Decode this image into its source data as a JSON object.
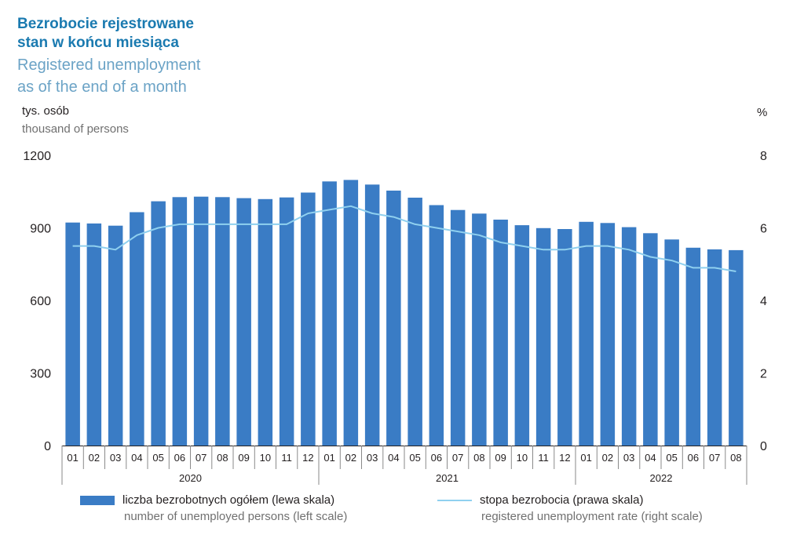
{
  "title": {
    "pl_line1": "Bezrobocie rejestrowane",
    "pl_line2": "stan w końcu miesiąca",
    "en_line1": "Registered unemployment",
    "en_line2": "as of the end of a month"
  },
  "axis_units": {
    "left_pl": "tys. osób",
    "left_en": "thousand of persons",
    "right": "%"
  },
  "legend": {
    "bars_pl": "liczba bezrobotnych ogółem (lewa skala)",
    "bars_en": "number of unemployed persons (left scale)",
    "line_pl": "stopa bezrobocia (prawa skala)",
    "line_en": "registered unemployment rate (right scale)"
  },
  "colors": {
    "bar": "#3a7cc5",
    "line": "#8fd0ef",
    "axis": "#231f20",
    "title_dark": "#1a7ab0",
    "title_light": "#6ba3c6"
  },
  "chart_data": {
    "type": "bar",
    "categories": [
      "01",
      "02",
      "03",
      "04",
      "05",
      "06",
      "07",
      "08",
      "09",
      "10",
      "11",
      "12",
      "01",
      "02",
      "03",
      "04",
      "05",
      "06",
      "07",
      "08",
      "09",
      "10",
      "11",
      "12",
      "01",
      "02",
      "03",
      "04",
      "05",
      "06",
      "07",
      "08"
    ],
    "years": [
      {
        "label": "2020",
        "months": 12
      },
      {
        "label": "2021",
        "months": 12
      },
      {
        "label": "2022",
        "months": 8
      }
    ],
    "series": [
      {
        "name": "liczba bezrobotnych ogółem (lewa skala)",
        "type": "bar",
        "axis": "left",
        "values": [
          922,
          918,
          909,
          965,
          1010,
          1027,
          1029,
          1027,
          1023,
          1019,
          1026,
          1046,
          1092,
          1098,
          1079,
          1054,
          1025,
          994,
          974,
          959,
          934,
          911,
          899,
          895,
          925,
          920,
          903,
          878,
          852,
          818,
          811,
          808
        ]
      },
      {
        "name": "stopa bezrobocia (prawa skala)",
        "type": "line",
        "axis": "right",
        "values": [
          5.5,
          5.5,
          5.4,
          5.8,
          6.0,
          6.1,
          6.1,
          6.1,
          6.1,
          6.1,
          6.1,
          6.4,
          6.5,
          6.6,
          6.4,
          6.3,
          6.1,
          6.0,
          5.9,
          5.8,
          5.6,
          5.5,
          5.4,
          5.4,
          5.5,
          5.5,
          5.4,
          5.2,
          5.1,
          4.9,
          4.9,
          4.8
        ]
      }
    ],
    "y_left": {
      "min": 0,
      "max": 1200,
      "ticks": [
        "0",
        "300",
        "600",
        "900",
        "1200"
      ]
    },
    "y_right": {
      "min": 0,
      "max": 8,
      "ticks": [
        "0",
        "2",
        "4",
        "6",
        "8"
      ]
    },
    "grid": false,
    "legend_position": "bottom"
  }
}
